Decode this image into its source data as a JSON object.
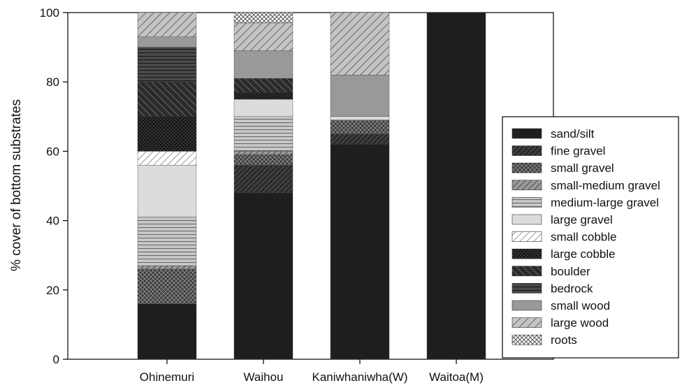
{
  "chart_data": {
    "type": "bar",
    "stacked": true,
    "title": "",
    "xlabel": "",
    "ylabel": "% cover of bottom substrates",
    "ylim": [
      0,
      100
    ],
    "yticks": [
      0,
      20,
      40,
      60,
      80,
      100
    ],
    "grid": false,
    "legend_position": "right",
    "categories": [
      "Ohinemuri",
      "Waihou",
      "Kaniwhaniwha(W)",
      "Waitoa(M)"
    ],
    "series": [
      {
        "name": "sand/silt",
        "color": "#1e1e1e",
        "pattern": "solid",
        "values": [
          16,
          48,
          62,
          100
        ]
      },
      {
        "name": "fine gravel",
        "color": "#3a3a3a",
        "pattern": "diag-fine",
        "values": [
          0,
          8,
          3,
          0
        ]
      },
      {
        "name": "small gravel",
        "color": "#3c3c3c",
        "pattern": "crosshatch",
        "values": [
          10,
          3,
          4,
          0
        ]
      },
      {
        "name": "small-medium gravel",
        "color": "#8a8a8a",
        "pattern": "diag-medium",
        "values": [
          1,
          1,
          0,
          0
        ]
      },
      {
        "name": "medium-large gravel",
        "color": "#aaaaaa",
        "pattern": "horizontal",
        "values": [
          14,
          10,
          0,
          0
        ]
      },
      {
        "name": "large gravel",
        "color": "#dcdcdc",
        "pattern": "solid",
        "values": [
          15,
          5,
          1,
          0
        ]
      },
      {
        "name": "small cobble",
        "color": "#ffffff",
        "pattern": "diag-light",
        "values": [
          4,
          0,
          0,
          0
        ]
      },
      {
        "name": "large cobble",
        "color": "#111111",
        "pattern": "crosshatch-dark",
        "values": [
          10,
          2,
          0,
          0
        ]
      },
      {
        "name": "boulder",
        "color": "#333333",
        "pattern": "diag-back",
        "values": [
          10,
          4,
          0,
          0
        ]
      },
      {
        "name": "bedrock",
        "color": "#555555",
        "pattern": "horizontal-dark",
        "values": [
          10,
          0,
          0,
          0
        ]
      },
      {
        "name": "small wood",
        "color": "#999999",
        "pattern": "solid",
        "values": [
          3,
          8,
          12,
          0
        ]
      },
      {
        "name": "large wood",
        "color": "#b4b4b4",
        "pattern": "diag-wide",
        "values": [
          7,
          8,
          18,
          0
        ]
      },
      {
        "name": "roots",
        "color": "#f2f2f2",
        "pattern": "crosshatch-light",
        "values": [
          0,
          3,
          0,
          0
        ]
      }
    ]
  }
}
